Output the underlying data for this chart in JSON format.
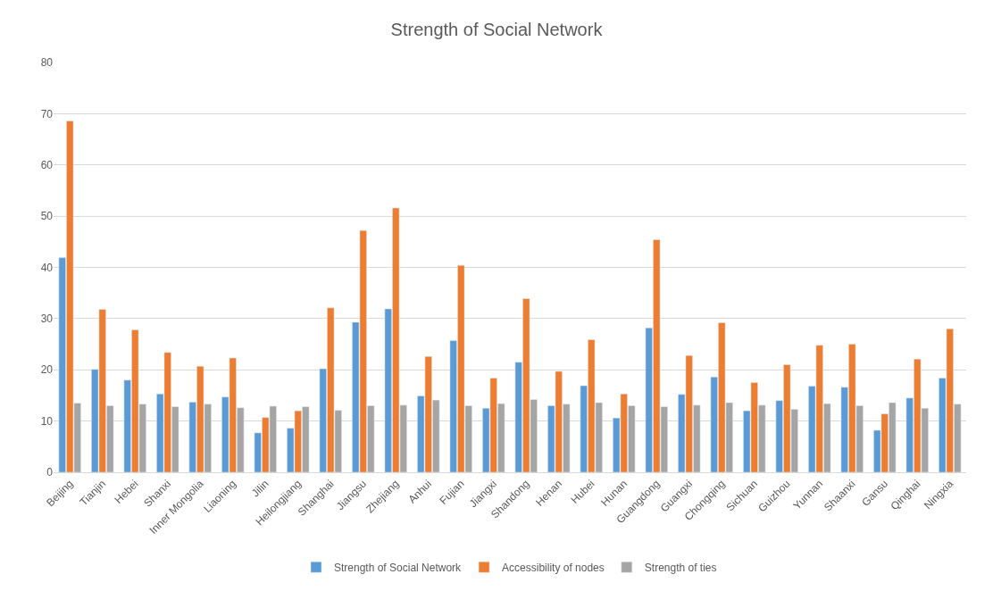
{
  "chart_data": {
    "type": "bar",
    "title": "Strength of Social Network",
    "categories": [
      "Beijing",
      "Tianjin",
      "Hebei",
      "Shanxi",
      "Inner Mongolia",
      "Liaoning",
      "Jilin",
      "Heilongjiang",
      "Shanghai",
      "Jiangsu",
      "Zhejiang",
      "Anhui",
      "Fujian",
      "Jiangxi",
      "Shandong",
      "Henan",
      "Hubei",
      "Hunan",
      "Guangdong",
      "Guangxi",
      "Chongqing",
      "Sichuan",
      "Guizhou",
      "Yunnan",
      "Shaanxi",
      "Gansu",
      "Qinghai",
      "Ningxia"
    ],
    "series": [
      {
        "name": "Strength of Social Network",
        "color": "#5b9bd5",
        "values": [
          41.9,
          20.1,
          18.0,
          15.3,
          13.7,
          14.7,
          7.7,
          8.6,
          20.2,
          29.3,
          31.9,
          14.9,
          25.7,
          12.5,
          21.5,
          13.0,
          16.9,
          10.6,
          28.2,
          15.2,
          18.6,
          12.0,
          14.0,
          16.8,
          16.6,
          8.2,
          14.5,
          18.4
        ]
      },
      {
        "name": "Accessibility of nodes",
        "color": "#ed7d31",
        "values": [
          68.6,
          31.8,
          27.8,
          23.4,
          20.7,
          22.3,
          10.7,
          12.0,
          32.1,
          47.2,
          51.6,
          22.6,
          40.4,
          18.4,
          33.9,
          19.7,
          25.9,
          15.3,
          45.4,
          22.8,
          29.2,
          17.5,
          21.0,
          24.8,
          25.0,
          11.4,
          22.1,
          28.0
        ]
      },
      {
        "name": "Strength of ties",
        "color": "#a5a5a5",
        "values": [
          13.5,
          13.0,
          13.3,
          12.8,
          13.3,
          12.6,
          12.9,
          12.8,
          12.1,
          13.0,
          13.1,
          14.1,
          13.0,
          13.4,
          14.2,
          13.3,
          13.6,
          13.0,
          12.8,
          13.1,
          13.6,
          13.1,
          12.3,
          13.4,
          13.0,
          13.6,
          12.5,
          13.3
        ]
      }
    ],
    "ylim": [
      0,
      80
    ],
    "yticks": [
      0,
      10,
      20,
      30,
      40,
      50,
      60,
      70,
      80
    ],
    "grid": "y",
    "legend": "bottom"
  }
}
